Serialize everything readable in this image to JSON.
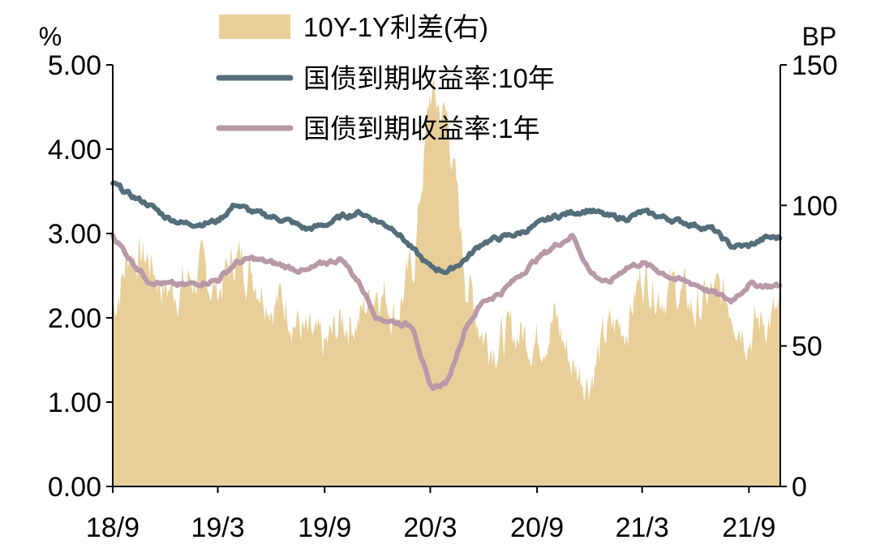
{
  "chart_data": {
    "type": "line",
    "left_axis_unit": "%",
    "right_axis_unit": "BP",
    "ylim_left": [
      0,
      5
    ],
    "ylim_right": [
      0,
      150
    ],
    "yticks_left": [
      "0.00",
      "1.00",
      "2.00",
      "3.00",
      "4.00",
      "5.00"
    ],
    "yticks_right": [
      "0",
      "50",
      "100",
      "150"
    ],
    "xticks": [
      "18/9",
      "19/3",
      "19/9",
      "20/3",
      "20/9",
      "21/3",
      "21/9"
    ],
    "legend_position": "top-center",
    "grid": false,
    "x_dates": [
      "2018-09-01",
      "2018-10-01",
      "2018-11-01",
      "2018-12-01",
      "2019-01-01",
      "2019-02-01",
      "2019-03-01",
      "2019-04-01",
      "2019-05-01",
      "2019-06-01",
      "2019-07-01",
      "2019-08-01",
      "2019-09-01",
      "2019-10-01",
      "2019-11-01",
      "2019-12-01",
      "2020-01-01",
      "2020-02-01",
      "2020-03-01",
      "2020-04-01",
      "2020-05-01",
      "2020-06-01",
      "2020-07-01",
      "2020-08-01",
      "2020-09-01",
      "2020-10-01",
      "2020-11-01",
      "2020-12-01",
      "2021-01-01",
      "2021-02-01",
      "2021-03-01",
      "2021-04-01",
      "2021-05-01",
      "2021-06-01",
      "2021-07-01",
      "2021-08-01",
      "2021-09-01",
      "2021-10-01"
    ],
    "series": [
      {
        "name": "10Y-1Y利差(右)",
        "type": "area",
        "axis": "right",
        "color": "#E8CF9A",
        "values": [
          63,
          84,
          81,
          70,
          72,
          76,
          70,
          82,
          77,
          67,
          65,
          52,
          48,
          59,
          60,
          73,
          62,
          78,
          140,
          130,
          75,
          54,
          52,
          55,
          53,
          60,
          43,
          39,
          55,
          58,
          76,
          70,
          70,
          62,
          68,
          66,
          55,
          60
        ]
      },
      {
        "name": "国债到期收益率:10年",
        "type": "line",
        "axis": "left",
        "color": "#546E7A",
        "values": [
          3.6,
          3.45,
          3.35,
          3.2,
          3.12,
          3.12,
          3.15,
          3.35,
          3.25,
          3.2,
          3.15,
          3.05,
          3.1,
          3.2,
          3.25,
          3.15,
          3.05,
          2.8,
          2.6,
          2.55,
          2.7,
          2.9,
          2.95,
          3.0,
          3.1,
          3.2,
          3.25,
          3.28,
          3.2,
          3.18,
          3.25,
          3.2,
          3.15,
          3.1,
          3.05,
          2.85,
          2.85,
          2.95
        ]
      },
      {
        "name": "国债到期收益率:1年",
        "type": "line",
        "axis": "left",
        "color": "#B899A8",
        "values": [
          2.98,
          2.7,
          2.45,
          2.4,
          2.38,
          2.42,
          2.45,
          2.65,
          2.7,
          2.65,
          2.6,
          2.55,
          2.65,
          2.7,
          2.4,
          2.0,
          1.95,
          1.9,
          1.15,
          1.25,
          1.9,
          2.2,
          2.3,
          2.5,
          2.7,
          2.85,
          2.98,
          2.55,
          2.4,
          2.6,
          2.65,
          2.55,
          2.45,
          2.4,
          2.3,
          2.2,
          2.4,
          2.38
        ]
      }
    ]
  }
}
